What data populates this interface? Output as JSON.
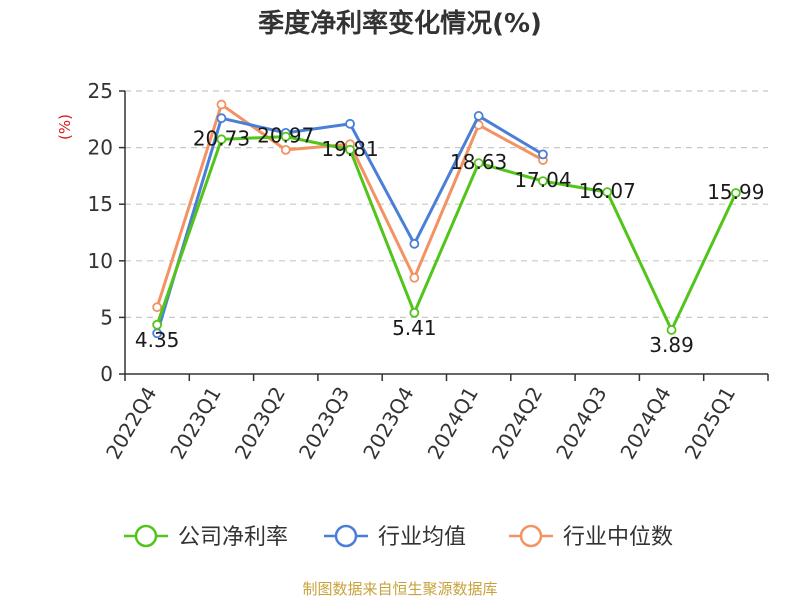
{
  "chart_data": {
    "type": "line",
    "title": "季度净利率变化情况(%)",
    "unit_label": "(%)",
    "ylim": [
      0,
      25
    ],
    "yticks": [
      "0",
      "5",
      "10",
      "15",
      "20",
      "25"
    ],
    "grid": true,
    "legend_position": "bottom",
    "categories": [
      "2022Q4",
      "2023Q1",
      "2023Q2",
      "2023Q3",
      "2023Q4",
      "2024Q1",
      "2024Q2",
      "2024Q3",
      "2024Q4",
      "2025Q1"
    ],
    "series": [
      {
        "name": "公司净利率",
        "color": "#52c41a",
        "values": [
          4.35,
          20.73,
          20.97,
          19.81,
          5.41,
          18.63,
          17.04,
          16.07,
          3.89,
          15.99
        ],
        "labels": [
          "4.35",
          "20.73",
          "20.97",
          "19.81",
          "5.41",
          "18.63",
          "17.04",
          "16.07",
          "3.89",
          "15.99"
        ]
      },
      {
        "name": "行业均值",
        "color": "#4a7fd8",
        "values": [
          3.6,
          22.6,
          21.3,
          22.1,
          11.5,
          22.8,
          19.4,
          null,
          null,
          null
        ]
      },
      {
        "name": "行业中位数",
        "color": "#f39262",
        "values": [
          5.9,
          23.8,
          19.8,
          20.3,
          8.5,
          22.0,
          18.9,
          null,
          null,
          null
        ]
      }
    ]
  },
  "footer": {
    "source": "制图数据来自恒生聚源数据库"
  }
}
